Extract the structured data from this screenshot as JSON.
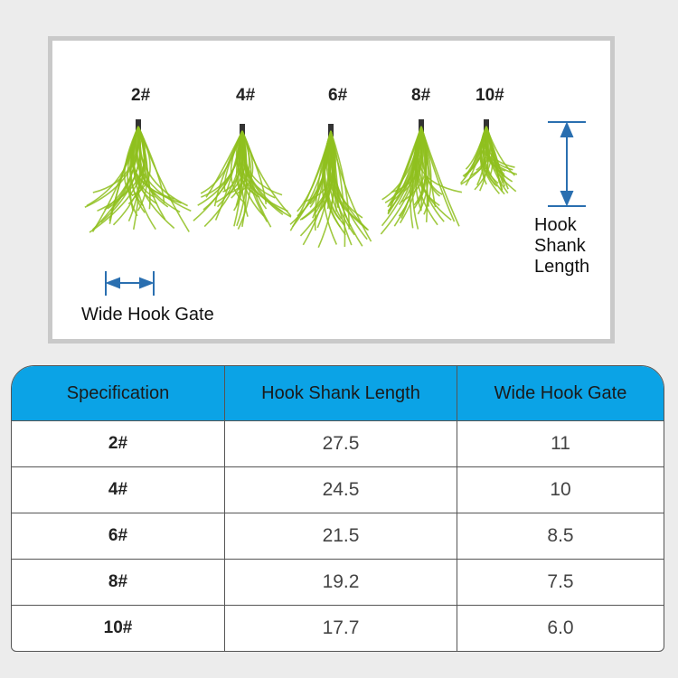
{
  "photo": {
    "sizes": [
      "2#",
      "4#",
      "6#",
      "8#",
      "10#"
    ],
    "shank_label": "Hook Shank Length",
    "shank_lines": [
      "Hook",
      "Shank",
      "Length"
    ],
    "gate_label": "Wide Hook Gate",
    "colors": {
      "lure": "#8fbf1e",
      "arrow": "#2a6fb0"
    }
  },
  "table": {
    "headers": [
      "Specification",
      "Hook Shank Length",
      "Wide Hook Gate"
    ],
    "rows": [
      [
        "2#",
        "27.5",
        "11"
      ],
      [
        "4#",
        "24.5",
        "10"
      ],
      [
        "6#",
        "21.5",
        "8.5"
      ],
      [
        "8#",
        "19.2",
        "7.5"
      ],
      [
        "10#",
        "17.7",
        "6.0"
      ]
    ],
    "header_color": "#0ba3e6"
  }
}
